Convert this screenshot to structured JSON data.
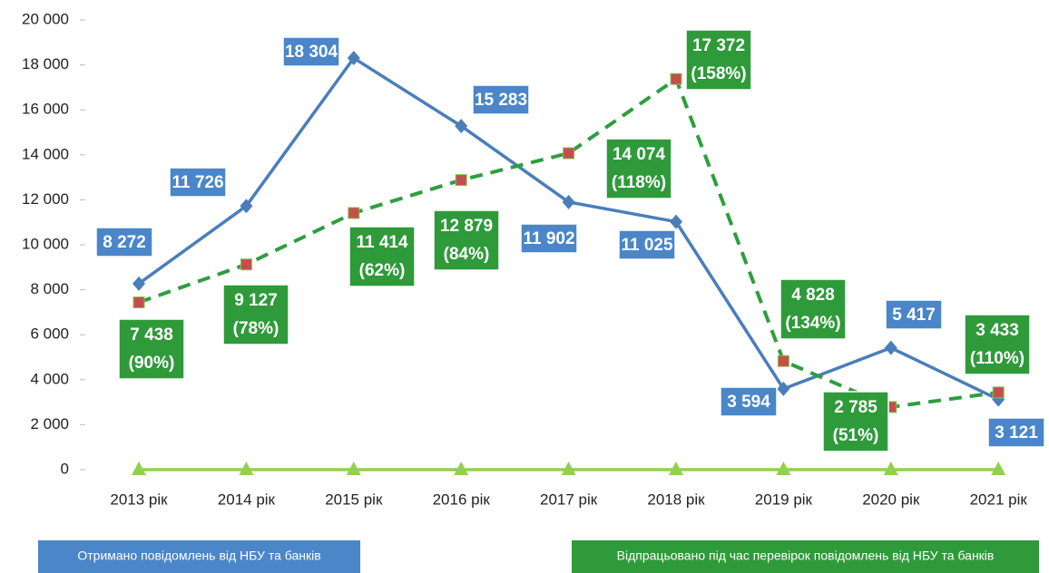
{
  "chart_data": {
    "type": "line",
    "categories": [
      "2013 рік",
      "2014 рік",
      "2015 рік",
      "2016 рік",
      "2017 рік",
      "2018 рік",
      "2019 рік",
      "2020 рік",
      "2021 рік"
    ],
    "ylim": [
      0,
      20000
    ],
    "yticks": [
      0,
      {
        "value": 2000,
        "label": "2 000"
      },
      {
        "value": 4000,
        "label": "4 000"
      },
      {
        "value": 6000,
        "label": "6 000"
      },
      {
        "value": 8000,
        "label": "8 000"
      },
      {
        "value": 10000,
        "label": "10 000"
      },
      {
        "value": 12000,
        "label": "12 000"
      },
      {
        "value": 14000,
        "label": "14 000"
      },
      {
        "value": 16000,
        "label": "16 000"
      },
      {
        "value": 18000,
        "label": "18 000"
      },
      {
        "value": 20000,
        "label": "20 000"
      }
    ],
    "grid": false,
    "series": [
      {
        "name": "Отримано  повідомлень  від  НБУ та  банків",
        "color": "#4a7ebb",
        "label_color": "#4a86c8",
        "marker": "diamond",
        "dash": false,
        "values": [
          8272,
          11726,
          18304,
          15283,
          11902,
          11025,
          3594,
          5417,
          3121
        ],
        "value_labels": [
          "8 272",
          "11 726",
          "18 304",
          "15 283",
          "11 902",
          "11 025",
          "3 594",
          "5 417",
          "3 121"
        ]
      },
      {
        "name": "Відпрацьовано  під  час  перевірок  повідомлень  від  НБУ та  банків",
        "color": "#2e9e3e",
        "label_color": "#2f9a3a",
        "marker": "square",
        "marker_color": "#c0504d",
        "dash": true,
        "values": [
          7438,
          9127,
          11414,
          12879,
          14074,
          17372,
          4828,
          2785,
          3433
        ],
        "value_labels": [
          "7 438",
          "9 127",
          "11 414",
          "12 879",
          "14 074",
          "17 372",
          "4 828",
          "2 785",
          "3 433"
        ],
        "shares": [
          "(90%)",
          "(78%)",
          "(62%)",
          "(84%)",
          "(118%)",
          "(158%)",
          "(134%)",
          "(51%)",
          "(110%)"
        ]
      },
      {
        "color": "#92d050",
        "marker": "triangle",
        "dash": false,
        "values": [
          0,
          0,
          0,
          0,
          0,
          0,
          0,
          0,
          0
        ]
      }
    ]
  }
}
